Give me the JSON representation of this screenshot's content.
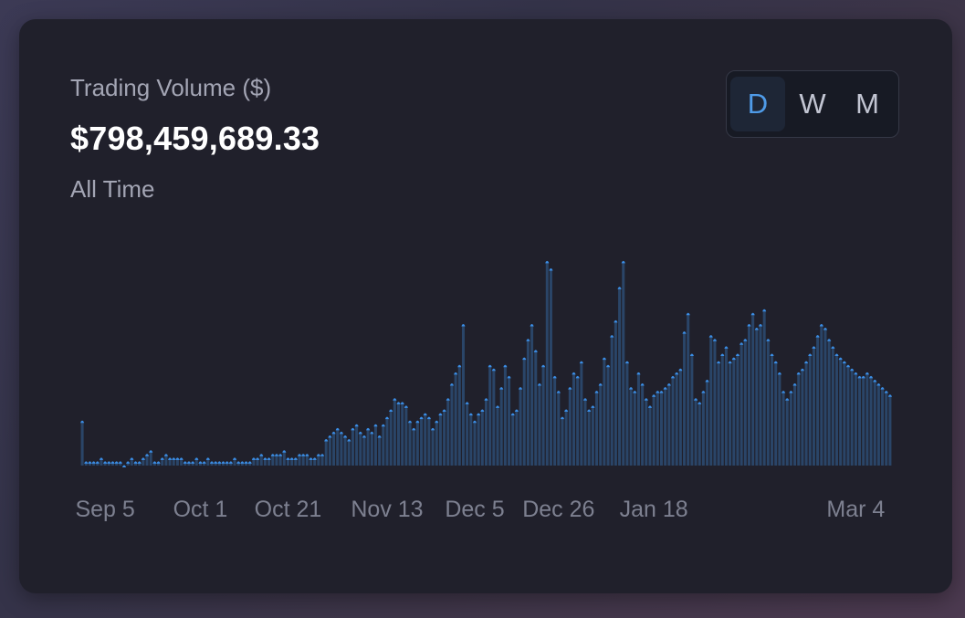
{
  "card": {
    "title": "Trading Volume ($)",
    "total": "$798,459,689.33",
    "subtitle": "All Time"
  },
  "range_toggle": {
    "options": [
      "D",
      "W",
      "M"
    ],
    "selected": "D"
  },
  "colors": {
    "bar": "#2a4568",
    "marker": "#3b8ee6",
    "active_toggle": "#4f9be8"
  },
  "chart_data": {
    "type": "bar",
    "x_tick_labels": [
      "Sep 5",
      "Oct 1",
      "Oct 21",
      "Nov 13",
      "Dec 5",
      "Dec 26",
      "Jan 18",
      "Mar 4"
    ],
    "tick_index": [
      6,
      31,
      54,
      80,
      103,
      125,
      150,
      203
    ],
    "values": [
      12,
      1,
      1,
      1,
      1,
      2,
      1,
      1,
      1,
      1,
      1,
      0,
      1,
      2,
      1,
      1,
      2,
      3,
      4,
      1,
      1,
      2,
      3,
      2,
      2,
      2,
      2,
      1,
      1,
      1,
      2,
      1,
      1,
      2,
      1,
      1,
      1,
      1,
      1,
      1,
      2,
      1,
      1,
      1,
      1,
      2,
      2,
      3,
      2,
      2,
      3,
      3,
      3,
      4,
      2,
      2,
      2,
      3,
      3,
      3,
      2,
      2,
      3,
      3,
      7,
      8,
      9,
      10,
      9,
      8,
      7,
      10,
      11,
      9,
      8,
      10,
      9,
      11,
      8,
      11,
      13,
      15,
      18,
      17,
      17,
      16,
      12,
      10,
      12,
      13,
      14,
      13,
      10,
      12,
      14,
      15,
      18,
      22,
      25,
      27,
      38,
      17,
      14,
      12,
      14,
      15,
      18,
      27,
      26,
      16,
      21,
      27,
      24,
      14,
      15,
      21,
      29,
      34,
      38,
      31,
      22,
      27,
      55,
      53,
      24,
      20,
      13,
      15,
      21,
      25,
      24,
      28,
      18,
      15,
      16,
      20,
      22,
      29,
      27,
      35,
      39,
      48,
      55,
      28,
      21,
      20,
      25,
      22,
      18,
      16,
      19,
      20,
      20,
      21,
      22,
      24,
      25,
      26,
      36,
      41,
      30,
      18,
      17,
      20,
      23,
      35,
      34,
      28,
      30,
      32,
      28,
      29,
      30,
      33,
      34,
      38,
      41,
      37,
      38,
      42,
      34,
      30,
      28,
      25,
      20,
      18,
      20,
      22,
      25,
      26,
      28,
      30,
      32,
      35,
      38,
      37,
      34,
      32,
      30,
      29,
      28,
      27,
      26,
      25,
      24,
      24,
      25,
      24,
      23,
      22,
      21,
      20,
      19
    ],
    "note_y_unit": "relative scale, no y-axis labels shown",
    "ylim": [
      0,
      60
    ]
  }
}
